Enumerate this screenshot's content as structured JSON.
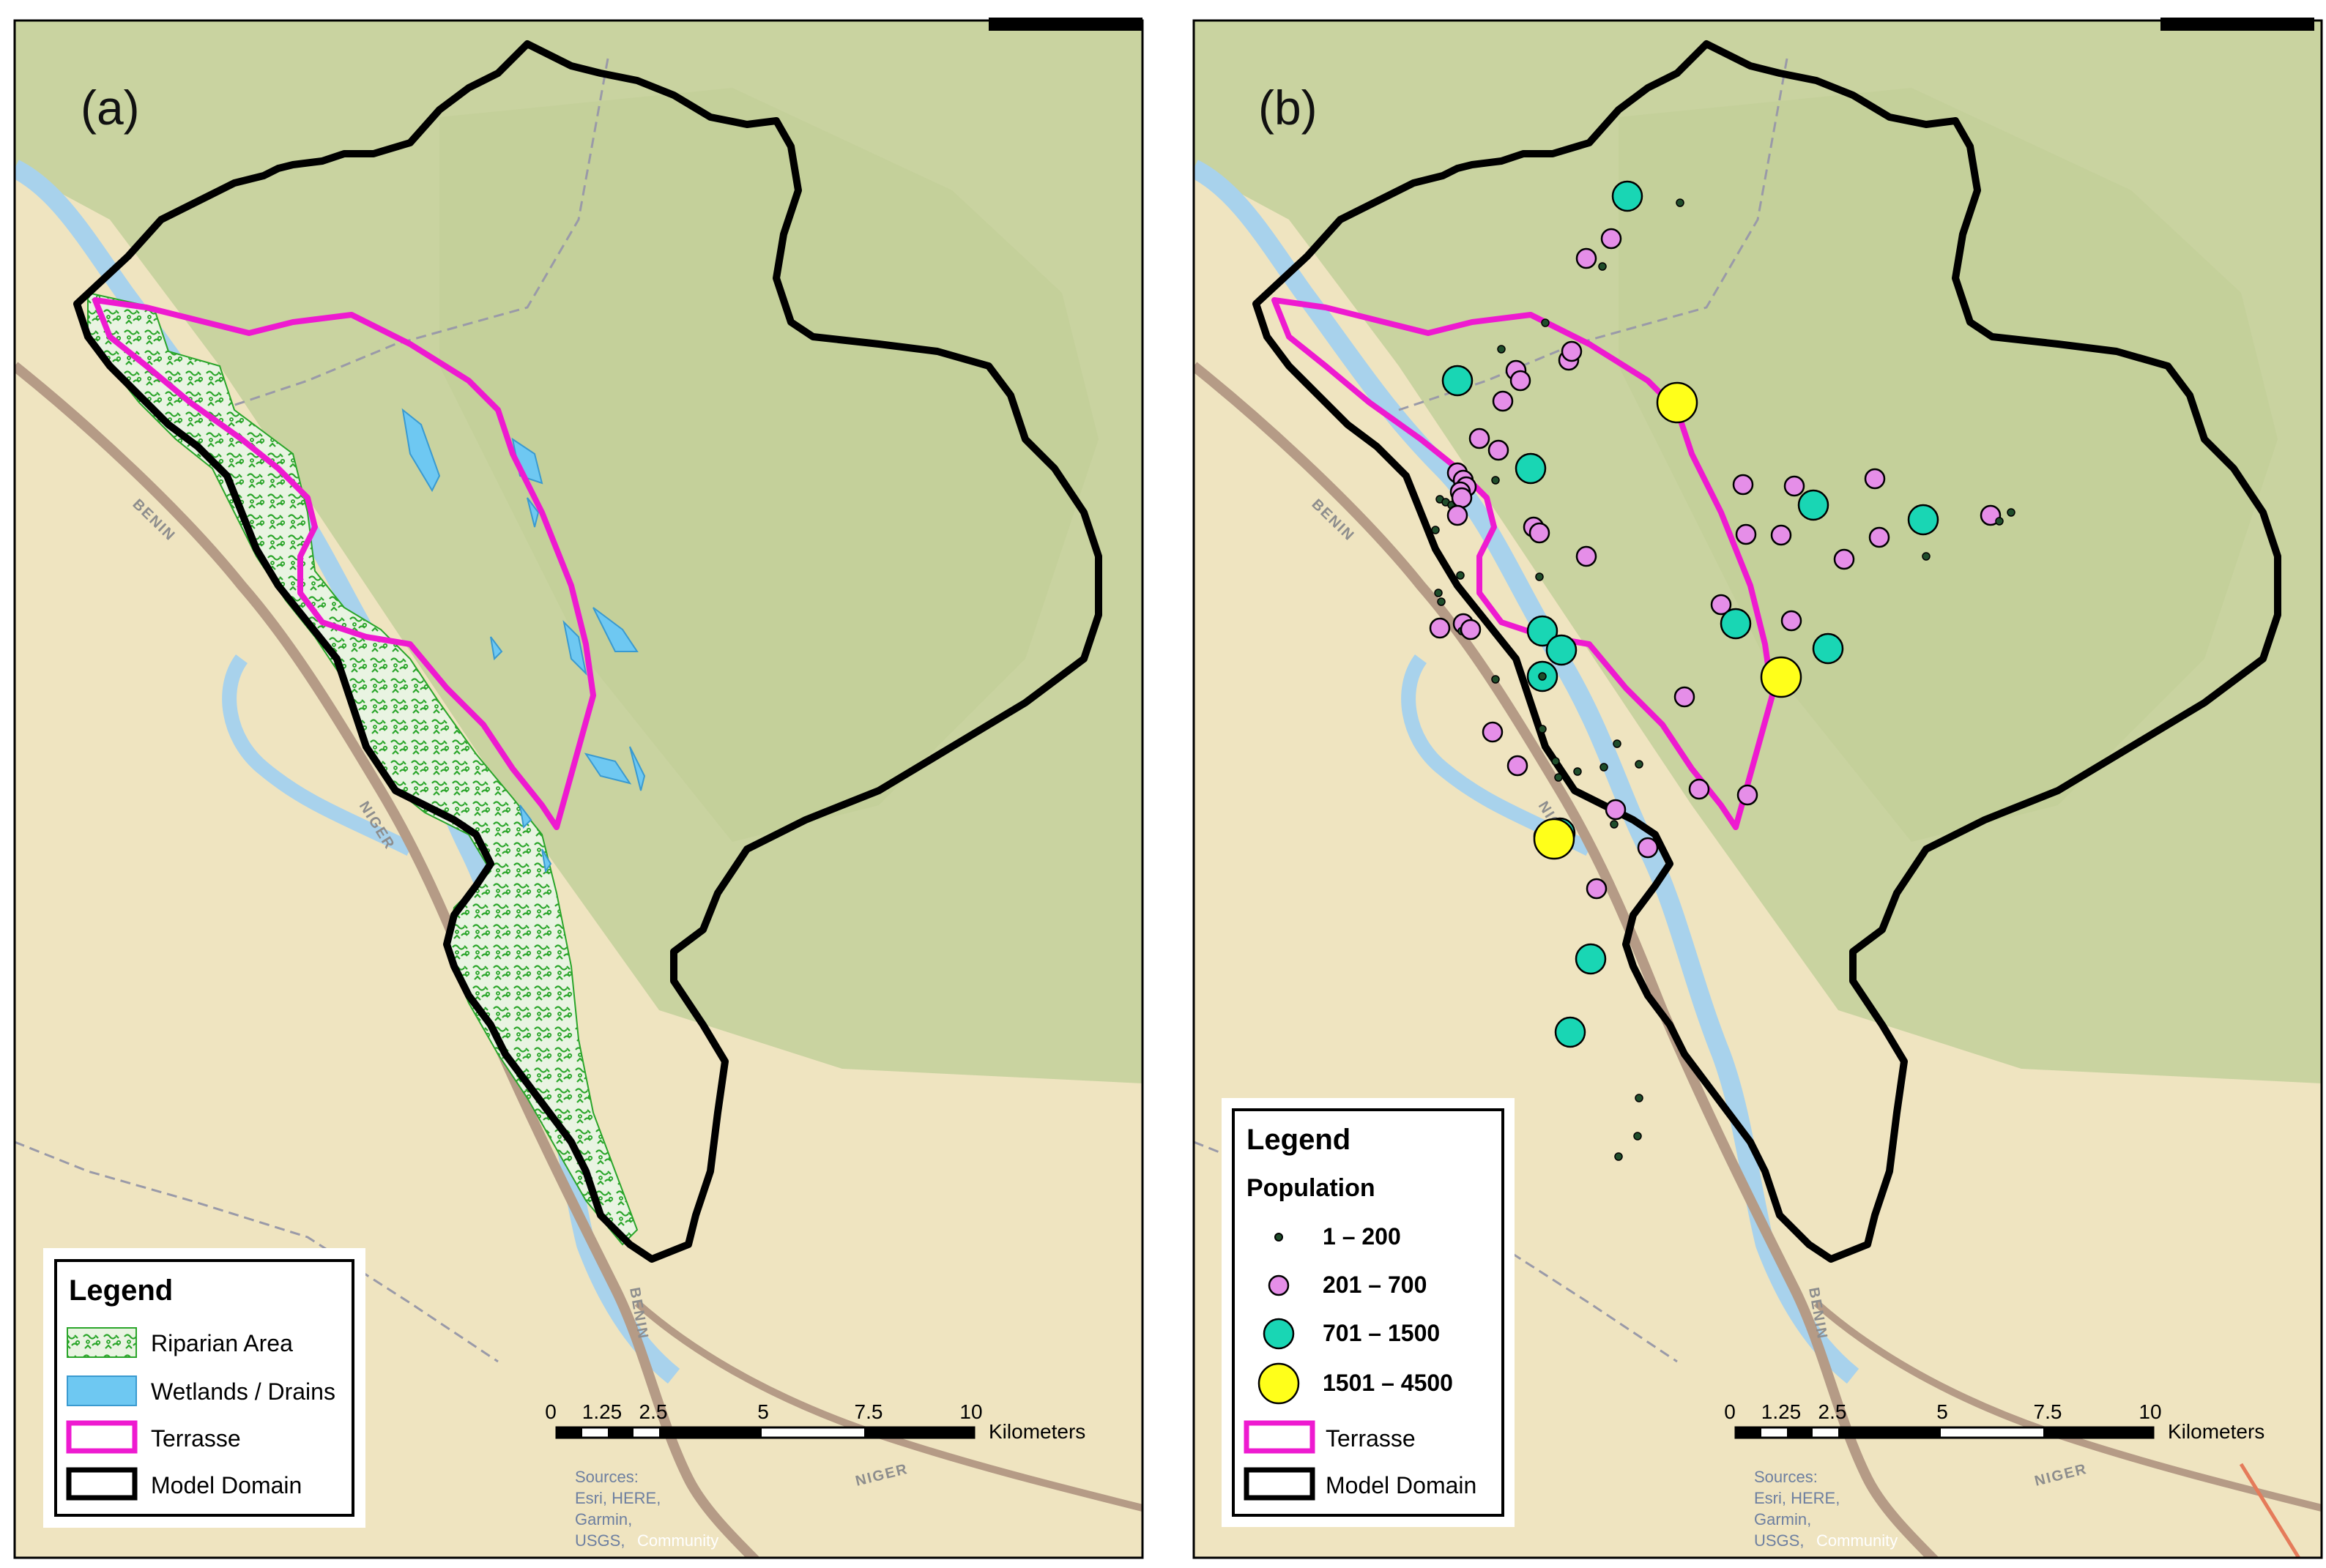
{
  "panels": [
    {
      "label": "(a)",
      "legend": {
        "title": "Legend",
        "items": [
          "Riparian Area",
          "Wetlands / Drains",
          "Terrasse",
          "Model Domain"
        ]
      }
    },
    {
      "label": "(b)",
      "legend": {
        "title": "Legend",
        "subtitle": "Population",
        "population_classes": [
          {
            "range": "1 – 200",
            "color": "#1f4d2b"
          },
          {
            "range": "201 – 700",
            "color": "#e58ee8"
          },
          {
            "range": "701 – 1500",
            "color": "#19d6b4"
          },
          {
            "range": "1501 – 4500",
            "color": "#ffff1a"
          }
        ],
        "items": [
          "Terrasse",
          "Model Domain"
        ]
      }
    }
  ],
  "scale_bar": {
    "ticks": [
      "0",
      "1.25",
      "2.5",
      "5",
      "7.5",
      "10"
    ],
    "unit": "Kilometers"
  },
  "credits": [
    "Sources:",
    "Esri, HERE,",
    "Garmin,",
    "USGS,",
    "Community"
  ],
  "place_labels": [
    "BENIN",
    "BENIN",
    "NIGER",
    "BENIN",
    "BENIN",
    "NIGER"
  ],
  "colors": {
    "terrasse": "#ee1ad0",
    "model_domain": "#000000",
    "riparian": "#2aa52a",
    "wetlands": "#6ec8f2",
    "river": "#a8d2ec",
    "upland": "#c9d3a0",
    "lowland": "#efe4c0"
  },
  "settlements": {
    "classes": [
      "1 – 200",
      "201 – 700",
      "701 – 1500",
      "1501 – 4500"
    ],
    "sizes": [
      1,
      2,
      3,
      4
    ]
  }
}
